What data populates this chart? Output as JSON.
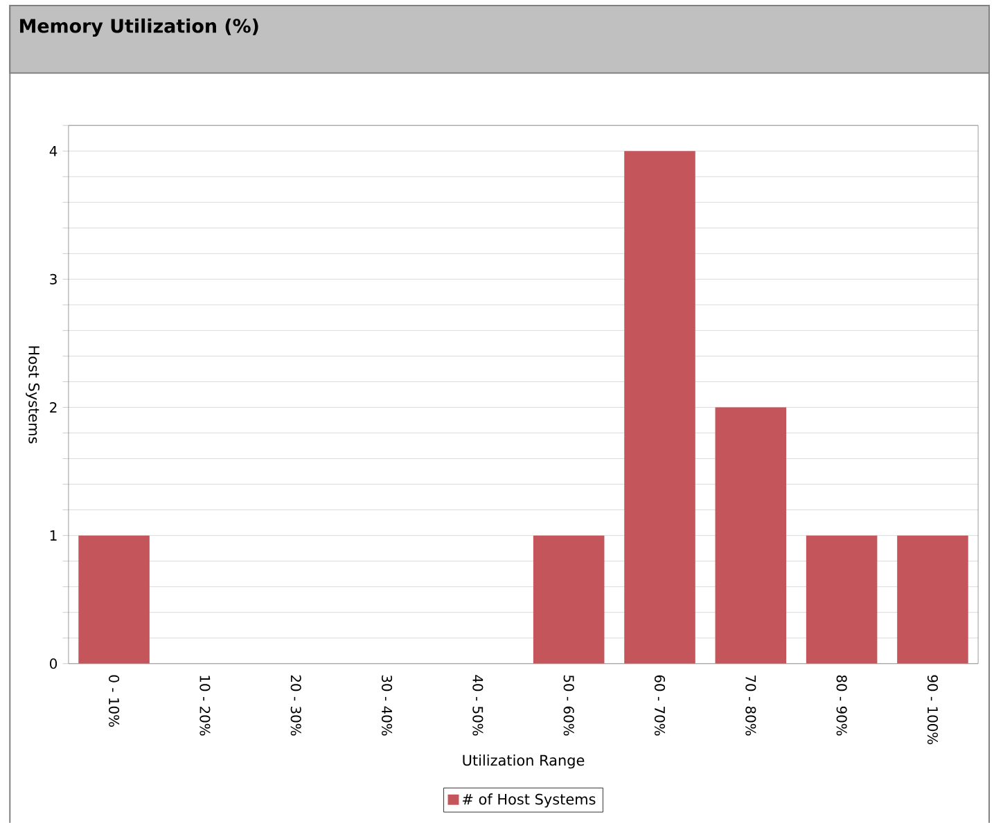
{
  "chart_data": {
    "type": "bar",
    "title": "Memory Utilization (%)",
    "xlabel": "Utilization Range",
    "ylabel": "Host Systems",
    "categories": [
      "0 - 10%",
      "10 - 20%",
      "20 - 30%",
      "30 - 40%",
      "40 - 50%",
      "50 - 60%",
      "60 - 70%",
      "70 - 80%",
      "80 - 90%",
      "90 - 100%"
    ],
    "series": [
      {
        "name": "# of Host Systems",
        "color": "#c4555b",
        "values": [
          1,
          0,
          0,
          0,
          0,
          1,
          4,
          2,
          1,
          1
        ]
      }
    ],
    "ylim": [
      0,
      4.2
    ],
    "yticks": [
      0,
      {
        "value": 0.2,
        "label": null
      },
      {
        "value": 0.4,
        "label": null
      },
      {
        "value": 0.6,
        "label": null
      },
      {
        "value": 0.8,
        "label": null
      },
      1,
      {
        "value": 1.2,
        "label": null
      },
      {
        "value": 1.4,
        "label": null
      },
      {
        "value": 1.6,
        "label": null
      },
      {
        "value": 1.8,
        "label": null
      },
      2,
      {
        "value": 2.2,
        "label": null
      },
      {
        "value": 2.4,
        "label": null
      },
      {
        "value": 2.6,
        "label": null
      },
      {
        "value": 2.8,
        "label": null
      },
      3,
      {
        "value": 3.2,
        "label": null
      },
      {
        "value": 3.4,
        "label": null
      },
      {
        "value": 3.6,
        "label": null
      },
      {
        "value": 3.8,
        "label": null
      },
      4,
      {
        "value": 4.2,
        "label": null
      }
    ],
    "grid": "y",
    "legend": "bottom"
  }
}
